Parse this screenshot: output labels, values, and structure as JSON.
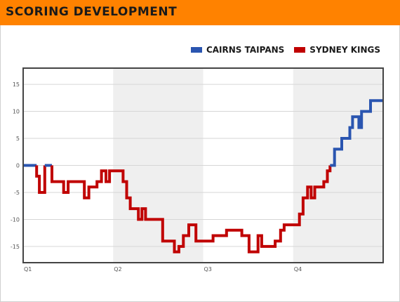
{
  "header": {
    "title": "Scoring Development"
  },
  "colors": {
    "header_bg": "#ff8200",
    "cairns": "#2a55b0",
    "sydney": "#c00000",
    "band": "#efefef"
  },
  "chart_data": {
    "type": "line",
    "title": "Scoring Development",
    "xlabel": "",
    "ylabel": "",
    "xlim": [
      0,
      40
    ],
    "ylim": [
      -18,
      18
    ],
    "y_ticks": [
      15,
      10,
      5,
      0,
      -5,
      -10,
      -15
    ],
    "x_ticks": [
      {
        "label": "Q1",
        "x": 0
      },
      {
        "label": "Q2",
        "x": 10
      },
      {
        "label": "Q3",
        "x": 20
      },
      {
        "label": "Q4",
        "x": 30
      }
    ],
    "shaded_quarters": [
      [
        10,
        20
      ],
      [
        30,
        40
      ]
    ],
    "grid": true,
    "legend_position": "top-right",
    "series": [
      {
        "name": "Cairns Taipans"
      },
      {
        "name": "Sydney Kings"
      }
    ],
    "margin_steps": [
      [
        0,
        0
      ],
      [
        1.5,
        -2
      ],
      [
        1.8,
        -5
      ],
      [
        2.4,
        0
      ],
      [
        3.2,
        -3
      ],
      [
        4.5,
        -5
      ],
      [
        5.0,
        -3
      ],
      [
        6.8,
        -6
      ],
      [
        7.3,
        -4
      ],
      [
        8.2,
        -3
      ],
      [
        8.7,
        -1
      ],
      [
        9.2,
        -3
      ],
      [
        9.6,
        -1
      ],
      [
        11.1,
        -3
      ],
      [
        11.5,
        -6
      ],
      [
        11.9,
        -8
      ],
      [
        12.8,
        -10
      ],
      [
        13.2,
        -8
      ],
      [
        13.6,
        -10
      ],
      [
        15.5,
        -14
      ],
      [
        16.8,
        -16
      ],
      [
        17.3,
        -15
      ],
      [
        17.8,
        -13
      ],
      [
        18.4,
        -11
      ],
      [
        19.2,
        -14
      ],
      [
        21.1,
        -13
      ],
      [
        22.6,
        -12
      ],
      [
        24.3,
        -13
      ],
      [
        25.1,
        -16
      ],
      [
        26.1,
        -13
      ],
      [
        26.5,
        -15
      ],
      [
        28.0,
        -14
      ],
      [
        28.6,
        -12
      ],
      [
        29.0,
        -11
      ],
      [
        30.7,
        -9
      ],
      [
        31.1,
        -6
      ],
      [
        31.6,
        -4
      ],
      [
        32.0,
        -6
      ],
      [
        32.4,
        -4
      ],
      [
        33.4,
        -3
      ],
      [
        33.8,
        -1
      ],
      [
        34.1,
        0
      ],
      [
        34.6,
        3
      ],
      [
        35.4,
        5
      ],
      [
        36.3,
        7
      ],
      [
        36.6,
        9
      ],
      [
        37.3,
        7
      ],
      [
        37.6,
        10
      ],
      [
        38.6,
        12
      ],
      [
        40.0,
        12
      ]
    ]
  }
}
